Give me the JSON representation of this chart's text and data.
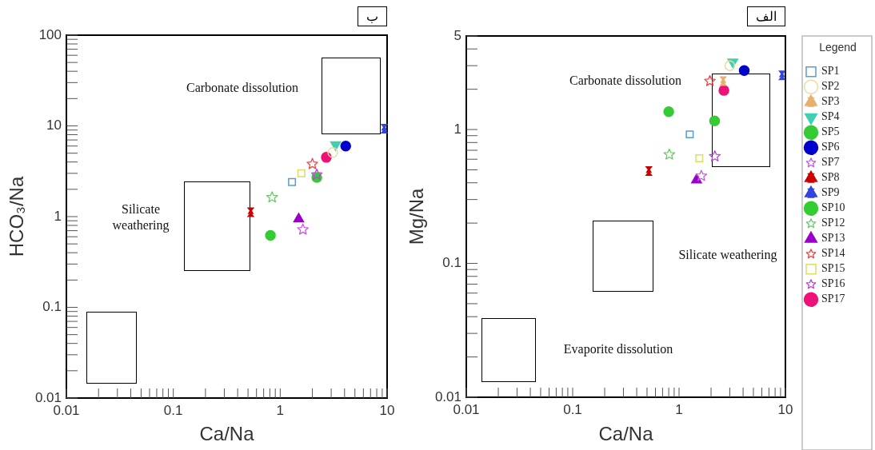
{
  "chart_data": [
    {
      "type": "scatter",
      "title": "ب",
      "xlabel": "Ca/Na",
      "ylabel": "HCO₃/Na",
      "log": "xy",
      "grid": false,
      "legend": false,
      "xlim": [
        0.01,
        10
      ],
      "xticks": [
        0.01,
        {
          "value": 0.02,
          "label": null
        },
        {
          "value": 0.03,
          "label": null
        },
        {
          "value": 0.04,
          "label": null
        },
        {
          "value": 0.05,
          "label": null
        },
        {
          "value": 0.06,
          "label": null
        },
        {
          "value": 0.07,
          "label": null
        },
        {
          "value": 0.08,
          "label": null
        },
        {
          "value": 0.09,
          "label": null
        },
        0.1,
        {
          "value": 0.2,
          "label": null
        },
        {
          "value": 0.3,
          "label": null
        },
        {
          "value": 0.4,
          "label": null
        },
        {
          "value": 0.5,
          "label": null
        },
        {
          "value": 0.6,
          "label": null
        },
        {
          "value": 0.7,
          "label": null
        },
        {
          "value": 0.8,
          "label": null
        },
        {
          "value": 0.9,
          "label": null
        },
        1,
        {
          "value": 2,
          "label": null
        },
        {
          "value": 3,
          "label": null
        },
        {
          "value": 4,
          "label": null
        },
        {
          "value": 5,
          "label": null
        },
        {
          "value": 6,
          "label": null
        },
        {
          "value": 7,
          "label": null
        },
        {
          "value": 8,
          "label": null
        },
        {
          "value": 9,
          "label": null
        },
        10
      ],
      "ylim": [
        0.01,
        100
      ],
      "yticks": [
        0.01,
        {
          "value": 0.02,
          "label": null
        },
        {
          "value": 0.03,
          "label": null
        },
        {
          "value": 0.04,
          "label": null
        },
        {
          "value": 0.05,
          "label": null
        },
        {
          "value": 0.06,
          "label": null
        },
        {
          "value": 0.07,
          "label": null
        },
        {
          "value": 0.08,
          "label": null
        },
        {
          "value": 0.09,
          "label": null
        },
        0.1,
        {
          "value": 0.2,
          "label": null
        },
        {
          "value": 0.3,
          "label": null
        },
        {
          "value": 0.4,
          "label": null
        },
        {
          "value": 0.5,
          "label": null
        },
        {
          "value": 0.6,
          "label": null
        },
        {
          "value": 0.7,
          "label": null
        },
        {
          "value": 0.8,
          "label": null
        },
        {
          "value": 0.9,
          "label": null
        },
        1,
        {
          "value": 2,
          "label": null
        },
        {
          "value": 3,
          "label": null
        },
        {
          "value": 4,
          "label": null
        },
        {
          "value": 5,
          "label": null
        },
        {
          "value": 6,
          "label": null
        },
        {
          "value": 7,
          "label": null
        },
        {
          "value": 8,
          "label": null
        },
        {
          "value": 9,
          "label": null
        },
        10,
        {
          "value": 20,
          "label": null
        },
        {
          "value": 30,
          "label": null
        },
        {
          "value": 40,
          "label": null
        },
        {
          "value": 50,
          "label": null
        },
        {
          "value": 60,
          "label": null
        },
        {
          "value": 70,
          "label": null
        },
        {
          "value": 80,
          "label": null
        },
        {
          "value": 90,
          "label": null
        },
        100
      ],
      "annotations": [
        "Carbonate dissolution",
        "Silicate weathering"
      ],
      "series": [
        {
          "color": "#5b9bd5",
          "marker": "square",
          "x": [
            1.29
          ],
          "values": [
            2.4
          ]
        },
        {
          "color": "#f0d9a0",
          "marker": "circle-open",
          "x": [
            3.1
          ],
          "values": [
            5.1
          ]
        },
        {
          "color": "#3fd0b0",
          "marker": "triangle-down",
          "x": [
            3.3
          ],
          "values": [
            6.2
          ]
        },
        {
          "color": "#33cc33",
          "marker": "circle",
          "x": [
            2.2
          ],
          "values": [
            2.7
          ]
        },
        {
          "color": "#0000cc",
          "marker": "circle",
          "x": [
            4.1
          ],
          "values": [
            6.0
          ]
        },
        {
          "color": "#cc55dd",
          "marker": "star",
          "x": [
            1.63
          ],
          "values": [
            0.72
          ]
        },
        {
          "color": "#cc0000",
          "marker": "triangle-hourglass",
          "x": [
            0.53
          ],
          "values": [
            1.12
          ]
        },
        {
          "color": "#3344dd",
          "marker": "triangle-hourglass",
          "x": [
            9.4
          ],
          "values": [
            9.3
          ]
        },
        {
          "color": "#33cc33",
          "marker": "circle",
          "x": [
            0.81
          ],
          "values": [
            0.62
          ]
        },
        {
          "color": "#66cc66",
          "marker": "star",
          "x": [
            0.84
          ],
          "values": [
            1.63
          ]
        },
        {
          "color": "#9900cc",
          "marker": "triangle",
          "x": [
            1.49
          ],
          "values": [
            0.94
          ]
        },
        {
          "color": "#ee4444",
          "marker": "star",
          "x": [
            2.0
          ],
          "values": [
            3.8
          ]
        },
        {
          "color": "#dddd66",
          "marker": "square",
          "x": [
            1.58
          ],
          "values": [
            3.0
          ]
        },
        {
          "color": "#bb44dd",
          "marker": "star",
          "x": [
            2.2
          ],
          "values": [
            2.9
          ]
        },
        {
          "color": "#ee1177",
          "marker": "circle",
          "x": [
            2.7
          ],
          "values": [
            4.5
          ]
        }
      ]
    },
    {
      "type": "scatter",
      "title": "الف",
      "xlabel": "Ca/Na",
      "ylabel": "Mg/Na",
      "log": "xy",
      "grid": false,
      "legend": "right",
      "legend_title": "Legend",
      "xlim": [
        0.01,
        10
      ],
      "xticks": [
        0.01,
        {
          "value": 0.02,
          "label": null
        },
        {
          "value": 0.03,
          "label": null
        },
        {
          "value": 0.04,
          "label": null
        },
        {
          "value": 0.05,
          "label": null
        },
        {
          "value": 0.06,
          "label": null
        },
        {
          "value": 0.07,
          "label": null
        },
        {
          "value": 0.08,
          "label": null
        },
        {
          "value": 0.09,
          "label": null
        },
        0.1,
        {
          "value": 0.2,
          "label": null
        },
        {
          "value": 0.3,
          "label": null
        },
        {
          "value": 0.4,
          "label": null
        },
        {
          "value": 0.5,
          "label": null
        },
        {
          "value": 0.6,
          "label": null
        },
        {
          "value": 0.7,
          "label": null
        },
        {
          "value": 0.8,
          "label": null
        },
        {
          "value": 0.9,
          "label": null
        },
        1,
        {
          "value": 2,
          "label": null
        },
        {
          "value": 3,
          "label": null
        },
        {
          "value": 4,
          "label": null
        },
        {
          "value": 5,
          "label": null
        },
        {
          "value": 6,
          "label": null
        },
        {
          "value": 7,
          "label": null
        },
        {
          "value": 8,
          "label": null
        },
        {
          "value": 9,
          "label": null
        },
        10
      ],
      "ylim": [
        0.01,
        5
      ],
      "yticks": [
        0.01,
        {
          "value": 0.02,
          "label": null
        },
        {
          "value": 0.03,
          "label": null
        },
        {
          "value": 0.04,
          "label": null
        },
        {
          "value": 0.05,
          "label": null
        },
        {
          "value": 0.06,
          "label": null
        },
        {
          "value": 0.07,
          "label": null
        },
        {
          "value": 0.08,
          "label": null
        },
        {
          "value": 0.09,
          "label": null
        },
        0.1,
        {
          "value": 0.2,
          "label": null
        },
        {
          "value": 0.3,
          "label": null
        },
        {
          "value": 0.4,
          "label": null
        },
        {
          "value": 0.5,
          "label": null
        },
        {
          "value": 0.6,
          "label": null
        },
        {
          "value": 0.7,
          "label": null
        },
        {
          "value": 0.8,
          "label": null
        },
        {
          "value": 0.9,
          "label": null
        },
        1,
        {
          "value": 2,
          "label": null
        },
        {
          "value": 3,
          "label": null
        },
        {
          "value": 4,
          "label": null
        },
        5
      ],
      "annotations": [
        "Carbonate dissolution",
        "Silicate weathering",
        "Evaporite dissolution"
      ],
      "series": [
        {
          "name": "SP1",
          "color": "#5b9bd5",
          "marker": "square",
          "x": [
            1.26
          ],
          "values": [
            0.92
          ]
        },
        {
          "name": "SP2",
          "color": "#f0d9a0",
          "marker": "circle-open",
          "x": [
            3.0
          ],
          "values": [
            3.0
          ]
        },
        {
          "name": "SP3",
          "color": "#e8b070",
          "marker": "triangle-hourglass",
          "x": [
            2.6
          ],
          "values": [
            2.3
          ]
        },
        {
          "name": "SP4",
          "color": "#3fd0b0",
          "marker": "triangle-down",
          "x": [
            3.2
          ],
          "values": [
            3.2
          ]
        },
        {
          "name": "SP5",
          "color": "#33cc33",
          "marker": "circle",
          "x": [
            2.16
          ],
          "values": [
            1.16
          ]
        },
        {
          "name": "SP6",
          "color": "#0000cc",
          "marker": "circle",
          "x": [
            4.1
          ],
          "values": [
            2.76
          ]
        },
        {
          "name": "SP7",
          "color": "#cc55dd",
          "marker": "star",
          "x": [
            1.62
          ],
          "values": [
            0.45
          ]
        },
        {
          "name": "SP8",
          "color": "#cc0000",
          "marker": "triangle-hourglass",
          "x": [
            0.52
          ],
          "values": [
            0.49
          ]
        },
        {
          "name": "SP9",
          "color": "#3344dd",
          "marker": "triangle-hourglass",
          "x": [
            9.3
          ],
          "values": [
            2.54
          ]
        },
        {
          "name": "SP10",
          "color": "#33cc33",
          "marker": "circle",
          "x": [
            0.8
          ],
          "values": [
            1.36
          ]
        },
        {
          "name": "SP12",
          "color": "#66cc66",
          "marker": "star",
          "x": [
            0.81
          ],
          "values": [
            0.65
          ]
        },
        {
          "name": "SP13",
          "color": "#9900cc",
          "marker": "triangle",
          "x": [
            1.46
          ],
          "values": [
            0.42
          ]
        },
        {
          "name": "SP14",
          "color": "#ee4444",
          "marker": "star",
          "x": [
            1.95
          ],
          "values": [
            2.3
          ]
        },
        {
          "name": "SP15",
          "color": "#dddd66",
          "marker": "square",
          "x": [
            1.55
          ],
          "values": [
            0.61
          ]
        },
        {
          "name": "SP16",
          "color": "#bb44dd",
          "marker": "star",
          "x": [
            2.17
          ],
          "values": [
            0.63
          ]
        },
        {
          "name": "SP17",
          "color": "#ee1177",
          "marker": "circle",
          "x": [
            2.64
          ],
          "values": [
            1.96
          ]
        }
      ]
    }
  ]
}
